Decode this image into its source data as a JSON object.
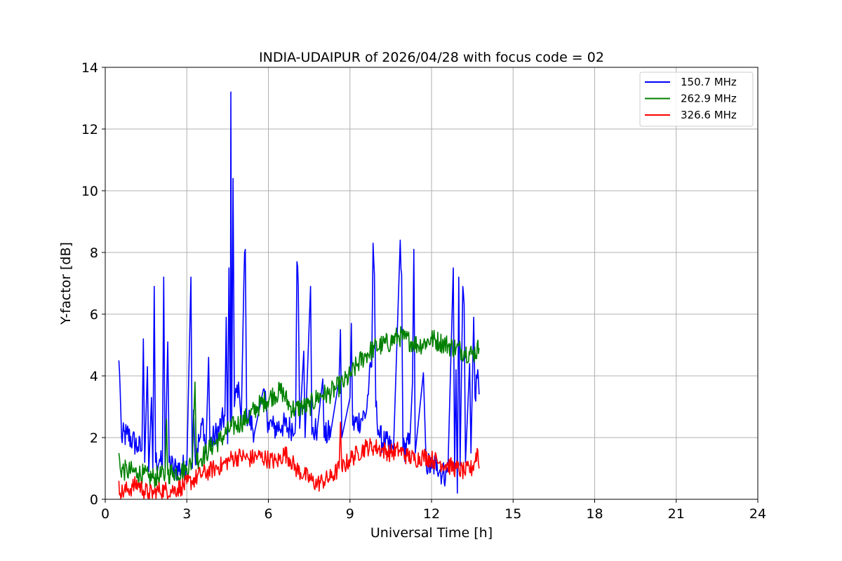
{
  "chart_data": {
    "type": "line",
    "title": "INDIA-UDAIPUR of 2026/04/28 with focus code = 02",
    "xlabel": "Universal Time [h]",
    "ylabel": "Y-factor [dB]",
    "xlim": [
      0,
      24
    ],
    "ylim": [
      0,
      14
    ],
    "xticks": [
      0,
      3,
      6,
      9,
      12,
      15,
      18,
      21,
      24
    ],
    "yticks": [
      0,
      2,
      4,
      6,
      8,
      10,
      12,
      14
    ],
    "grid": true,
    "legend_position": "top-right",
    "series": [
      {
        "name": "150.7 MHz",
        "color": "#0000ff",
        "points": [
          [
            0.5,
            4.5
          ],
          [
            0.55,
            3.5
          ],
          [
            0.6,
            2.0
          ],
          [
            0.8,
            2.1
          ],
          [
            1.0,
            1.9
          ],
          [
            1.2,
            1.7
          ],
          [
            1.35,
            1.6
          ],
          [
            1.4,
            5.2
          ],
          [
            1.45,
            1.2
          ],
          [
            1.55,
            4.3
          ],
          [
            1.6,
            0.9
          ],
          [
            1.7,
            3.3
          ],
          [
            1.75,
            1.0
          ],
          [
            1.8,
            6.9
          ],
          [
            1.85,
            1.2
          ],
          [
            2.0,
            1.3
          ],
          [
            2.1,
            1.0
          ],
          [
            2.15,
            7.2
          ],
          [
            2.2,
            1.0
          ],
          [
            2.3,
            5.1
          ],
          [
            2.35,
            1.2
          ],
          [
            2.5,
            1.0
          ],
          [
            2.8,
            1.0
          ],
          [
            3.0,
            1.1
          ],
          [
            3.15,
            7.2
          ],
          [
            3.2,
            1.0
          ],
          [
            3.25,
            2.9
          ],
          [
            3.3,
            1.5
          ],
          [
            3.5,
            2.0
          ],
          [
            3.6,
            2.6
          ],
          [
            3.7,
            1.5
          ],
          [
            3.8,
            4.6
          ],
          [
            3.85,
            1.8
          ],
          [
            4.0,
            2.0
          ],
          [
            4.2,
            2.3
          ],
          [
            4.4,
            2.7
          ],
          [
            4.45,
            5.9
          ],
          [
            4.5,
            1.8
          ],
          [
            4.55,
            7.5
          ],
          [
            4.6,
            2.5
          ],
          [
            4.62,
            13.2
          ],
          [
            4.65,
            2.5
          ],
          [
            4.7,
            10.4
          ],
          [
            4.75,
            3.0
          ],
          [
            4.9,
            3.8
          ],
          [
            5.0,
            2.5
          ],
          [
            5.1,
            7.1
          ],
          [
            5.15,
            8.1
          ],
          [
            5.2,
            2.8
          ],
          [
            5.5,
            2.2
          ],
          [
            5.8,
            3.5
          ],
          [
            6.0,
            2.5
          ],
          [
            6.2,
            2.3
          ],
          [
            6.5,
            2.4
          ],
          [
            6.8,
            2.3
          ],
          [
            7.0,
            2.5
          ],
          [
            7.05,
            7.7
          ],
          [
            7.1,
            6.9
          ],
          [
            7.15,
            2.3
          ],
          [
            7.3,
            4.8
          ],
          [
            7.35,
            2.0
          ],
          [
            7.55,
            6.9
          ],
          [
            7.6,
            2.1
          ],
          [
            7.8,
            2.3
          ],
          [
            8.0,
            3.9
          ],
          [
            8.05,
            2.0
          ],
          [
            8.3,
            2.2
          ],
          [
            8.6,
            3.9
          ],
          [
            8.65,
            5.5
          ],
          [
            8.7,
            2.0
          ],
          [
            9.0,
            3.3
          ],
          [
            9.05,
            5.7
          ],
          [
            9.1,
            2.4
          ],
          [
            9.4,
            2.6
          ],
          [
            9.6,
            2.8
          ],
          [
            9.7,
            3.8
          ],
          [
            9.8,
            4.3
          ],
          [
            9.85,
            8.3
          ],
          [
            9.9,
            7.3
          ],
          [
            9.95,
            3.0
          ],
          [
            10.1,
            2.0
          ],
          [
            10.3,
            1.8
          ],
          [
            10.6,
            1.6
          ],
          [
            10.85,
            8.4
          ],
          [
            10.9,
            7.3
          ],
          [
            10.95,
            1.6
          ],
          [
            11.2,
            1.8
          ],
          [
            11.3,
            3.8
          ],
          [
            11.35,
            8.1
          ],
          [
            11.4,
            1.5
          ],
          [
            11.7,
            4.1
          ],
          [
            11.8,
            1.2
          ],
          [
            12.0,
            1.0
          ],
          [
            12.2,
            1.2
          ],
          [
            12.4,
            0.8
          ],
          [
            12.6,
            0.9
          ],
          [
            12.8,
            7.5
          ],
          [
            12.85,
            1.0
          ],
          [
            12.9,
            4.2
          ],
          [
            12.95,
            0.2
          ],
          [
            13.0,
            7.2
          ],
          [
            13.05,
            1.1
          ],
          [
            13.15,
            6.9
          ],
          [
            13.2,
            6.3
          ],
          [
            13.25,
            1.2
          ],
          [
            13.4,
            4.4
          ],
          [
            13.45,
            1.5
          ],
          [
            13.55,
            5.9
          ],
          [
            13.6,
            3.3
          ],
          [
            13.7,
            4.2
          ],
          [
            13.75,
            3.4
          ]
        ]
      },
      {
        "name": "262.9 MHz",
        "color": "#008000",
        "points": [
          [
            0.5,
            1.5
          ],
          [
            0.55,
            1.0
          ],
          [
            0.8,
            0.9
          ],
          [
            1.0,
            0.9
          ],
          [
            1.2,
            0.85
          ],
          [
            1.4,
            0.8
          ],
          [
            1.6,
            0.7
          ],
          [
            1.8,
            0.7
          ],
          [
            2.0,
            0.75
          ],
          [
            2.2,
            0.8
          ],
          [
            2.25,
            2.6
          ],
          [
            2.3,
            0.8
          ],
          [
            2.5,
            0.9
          ],
          [
            2.8,
            0.9
          ],
          [
            3.0,
            1.0
          ],
          [
            3.2,
            1.2
          ],
          [
            3.3,
            3.8
          ],
          [
            3.35,
            1.3
          ],
          [
            3.6,
            1.4
          ],
          [
            3.8,
            1.6
          ],
          [
            4.0,
            1.8
          ],
          [
            4.2,
            1.9
          ],
          [
            4.4,
            2.1
          ],
          [
            4.6,
            2.3
          ],
          [
            4.8,
            2.4
          ],
          [
            5.0,
            2.5
          ],
          [
            5.3,
            2.7
          ],
          [
            5.6,
            3.0
          ],
          [
            5.9,
            3.2
          ],
          [
            6.2,
            3.4
          ],
          [
            6.5,
            3.5
          ],
          [
            6.8,
            3.0
          ],
          [
            7.0,
            2.9
          ],
          [
            7.2,
            3.0
          ],
          [
            7.5,
            3.0
          ],
          [
            7.8,
            3.3
          ],
          [
            8.0,
            3.4
          ],
          [
            8.2,
            3.4
          ],
          [
            8.5,
            3.6
          ],
          [
            8.8,
            3.8
          ],
          [
            9.0,
            4.0
          ],
          [
            9.3,
            4.4
          ],
          [
            9.6,
            4.7
          ],
          [
            9.9,
            4.9
          ],
          [
            10.2,
            5.0
          ],
          [
            10.5,
            5.1
          ],
          [
            10.8,
            5.3
          ],
          [
            11.0,
            5.2
          ],
          [
            11.3,
            5.1
          ],
          [
            11.5,
            5.0
          ],
          [
            11.8,
            5.1
          ],
          [
            12.0,
            5.2
          ],
          [
            12.3,
            5.1
          ],
          [
            12.6,
            5.0
          ],
          [
            12.9,
            4.9
          ],
          [
            13.2,
            4.8
          ],
          [
            13.5,
            4.7
          ],
          [
            13.75,
            4.9
          ]
        ]
      },
      {
        "name": "326.6 MHz",
        "color": "#ff0000",
        "points": [
          [
            0.5,
            0.6
          ],
          [
            0.55,
            0.2
          ],
          [
            0.8,
            0.3
          ],
          [
            1.0,
            0.4
          ],
          [
            1.2,
            0.5
          ],
          [
            1.4,
            0.3
          ],
          [
            1.6,
            0.2
          ],
          [
            1.8,
            0.2
          ],
          [
            2.0,
            0.3
          ],
          [
            2.2,
            0.3
          ],
          [
            2.5,
            0.3
          ],
          [
            2.8,
            0.4
          ],
          [
            3.0,
            0.5
          ],
          [
            3.2,
            0.6
          ],
          [
            3.5,
            0.8
          ],
          [
            3.8,
            0.9
          ],
          [
            4.0,
            1.0
          ],
          [
            4.3,
            1.1
          ],
          [
            4.6,
            1.3
          ],
          [
            5.0,
            1.4
          ],
          [
            5.3,
            1.3
          ],
          [
            5.6,
            1.4
          ],
          [
            6.0,
            1.3
          ],
          [
            6.3,
            1.2
          ],
          [
            6.6,
            1.5
          ],
          [
            6.8,
            1.3
          ],
          [
            7.0,
            1.0
          ],
          [
            7.3,
            0.8
          ],
          [
            7.6,
            0.6
          ],
          [
            7.8,
            0.5
          ],
          [
            8.0,
            0.6
          ],
          [
            8.3,
            0.7
          ],
          [
            8.6,
            1.0
          ],
          [
            8.65,
            2.5
          ],
          [
            8.7,
            1.0
          ],
          [
            9.0,
            1.3
          ],
          [
            9.3,
            1.5
          ],
          [
            9.6,
            1.7
          ],
          [
            9.9,
            1.7
          ],
          [
            10.2,
            1.6
          ],
          [
            10.5,
            1.5
          ],
          [
            10.8,
            1.6
          ],
          [
            11.1,
            1.4
          ],
          [
            11.4,
            1.3
          ],
          [
            11.7,
            1.4
          ],
          [
            12.0,
            1.3
          ],
          [
            12.3,
            1.2
          ],
          [
            12.6,
            1.1
          ],
          [
            12.9,
            1.0
          ],
          [
            13.2,
            0.9
          ],
          [
            13.5,
            1.0
          ],
          [
            13.7,
            1.6
          ],
          [
            13.75,
            1.0
          ]
        ]
      }
    ]
  }
}
